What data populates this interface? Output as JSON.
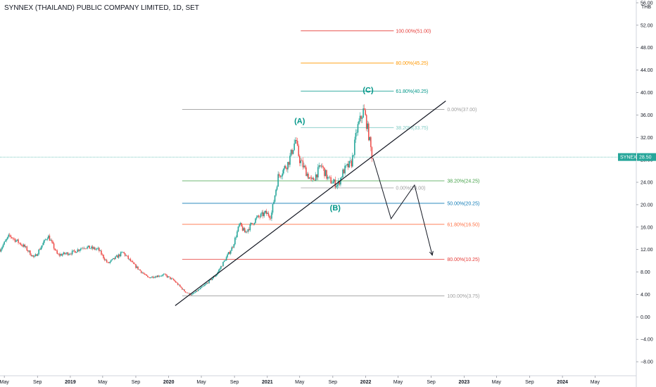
{
  "title": "SYNNEX (THAILAND) PUBLIC COMPANY LIMITED, 1D, SET",
  "currency": "THB",
  "ticker_badge": {
    "symbol": "SYNEX",
    "price": "28.50",
    "color": "#26a69a"
  },
  "colors": {
    "up": "#26a69a",
    "down": "#ef5350"
  },
  "chart_data": {
    "type": "candlestick",
    "y_axis": {
      "ylim": [
        -10.5,
        56.5
      ],
      "ticks": [
        56,
        52,
        48,
        44,
        40,
        36,
        32,
        28,
        24,
        20,
        16,
        12,
        8,
        4,
        0,
        -4,
        -8
      ],
      "labels": [
        "56.00",
        "52.00",
        "48.00",
        "44.00",
        "40.00",
        "36.00",
        "32.00",
        "28.00",
        "24.00",
        "20.00",
        "16.00",
        "12.00",
        "8.00",
        "4.00",
        "0.00",
        "−4.00",
        "−8.00"
      ]
    },
    "x_axis": {
      "xlim": [
        "2018-04-15",
        "2024-10-01"
      ],
      "ticks": [
        {
          "date": "2018-05-01",
          "label": "May"
        },
        {
          "date": "2018-09-01",
          "label": "Sep"
        },
        {
          "date": "2019-01-01",
          "label": "2019"
        },
        {
          "date": "2019-05-01",
          "label": "May"
        },
        {
          "date": "2019-09-01",
          "label": "Sep"
        },
        {
          "date": "2020-01-01",
          "label": "2020"
        },
        {
          "date": "2020-05-01",
          "label": "May"
        },
        {
          "date": "2020-09-01",
          "label": "Sep"
        },
        {
          "date": "2021-01-01",
          "label": "2021"
        },
        {
          "date": "2021-05-01",
          "label": "May"
        },
        {
          "date": "2021-09-01",
          "label": "Sep"
        },
        {
          "date": "2022-01-01",
          "label": "2022"
        },
        {
          "date": "2022-05-01",
          "label": "May"
        },
        {
          "date": "2022-09-01",
          "label": "Sep"
        },
        {
          "date": "2023-01-01",
          "label": "2023"
        },
        {
          "date": "2023-05-01",
          "label": "May"
        },
        {
          "date": "2023-09-01",
          "label": "Sep"
        },
        {
          "date": "2024-01-01",
          "label": "2024"
        },
        {
          "date": "2024-05-01",
          "label": "May"
        }
      ]
    },
    "price_anchors": [
      [
        "2018-04-15",
        12.0
      ],
      [
        "2018-05-20",
        14.5
      ],
      [
        "2018-07-15",
        12.5
      ],
      [
        "2018-08-20",
        10.5
      ],
      [
        "2018-10-10",
        14.5
      ],
      [
        "2018-11-15",
        11.0
      ],
      [
        "2019-01-10",
        11.5
      ],
      [
        "2019-02-20",
        12.5
      ],
      [
        "2019-04-15",
        12.0
      ],
      [
        "2019-05-20",
        9.5
      ],
      [
        "2019-07-15",
        11.5
      ],
      [
        "2019-08-20",
        9.5
      ],
      [
        "2019-10-15",
        7.0
      ],
      [
        "2019-12-15",
        7.5
      ],
      [
        "2020-01-20",
        6.5
      ],
      [
        "2020-03-01",
        4.5
      ],
      [
        "2020-03-25",
        3.9
      ],
      [
        "2020-05-10",
        5.5
      ],
      [
        "2020-06-25",
        7.5
      ],
      [
        "2020-08-01",
        10.5
      ],
      [
        "2020-08-25",
        12.5
      ],
      [
        "2020-09-20",
        16.5
      ],
      [
        "2020-10-10",
        15.0
      ],
      [
        "2020-11-20",
        17.5
      ],
      [
        "2020-12-25",
        18.5
      ],
      [
        "2021-01-15",
        18.0
      ],
      [
        "2021-02-10",
        25.0
      ],
      [
        "2021-03-20",
        27.5
      ],
      [
        "2021-04-15",
        31.5
      ],
      [
        "2021-05-01",
        28.0
      ],
      [
        "2021-06-15",
        24.0
      ],
      [
        "2021-07-20",
        27.0
      ],
      [
        "2021-08-15",
        24.5
      ],
      [
        "2021-09-20",
        23.5
      ],
      [
        "2021-10-10",
        26.0
      ],
      [
        "2021-11-10",
        27.5
      ],
      [
        "2021-11-30",
        33.5
      ],
      [
        "2021-12-25",
        37.0
      ],
      [
        "2022-01-10",
        33.0
      ],
      [
        "2022-01-25",
        28.5
      ]
    ],
    "fib_left": [
      {
        "label": "38.20%(24.25)",
        "value": 24.25,
        "color": "#43a047"
      },
      {
        "label": "50.00%(20.25)",
        "value": 20.25,
        "color": "#0d79b5"
      },
      {
        "label": "61.80%(16.50)",
        "value": 16.5,
        "color": "#ff7043"
      },
      {
        "label": "80.00%(10.25)",
        "value": 10.25,
        "color": "#e53935"
      },
      {
        "label": "100.00%(3.75)",
        "value": 3.75,
        "color": "#9e9e9e"
      }
    ],
    "fib_top": [
      {
        "label": "0.00%(37.00)",
        "value": 37.0,
        "color": "#9e9e9e"
      }
    ],
    "fib_ext": [
      {
        "label": "100.00%(51.00)",
        "value": 51.0,
        "color": "#e53935"
      },
      {
        "label": "80.00%(45.25)",
        "value": 45.25,
        "color": "#ff9800"
      },
      {
        "label": "61.80%(40.25)",
        "value": 40.25,
        "color": "#009688"
      },
      {
        "label": "38.20%(33.75)",
        "value": 33.75,
        "color": "#80cbc4"
      },
      {
        "label": "0.00%(23.00)",
        "value": 23.0,
        "color": "#9e9e9e"
      }
    ],
    "wave_labels": [
      {
        "text": "(A)",
        "date": "2021-05-01",
        "value": 34.5,
        "color": "#009688"
      },
      {
        "text": "(B)",
        "date": "2021-09-10",
        "value": 19.0,
        "color": "#009688"
      },
      {
        "text": "(C)",
        "date": "2022-01-10",
        "value": 40.0,
        "color": "#009688"
      }
    ],
    "trendline": {
      "from": [
        "2020-01-25",
        2.0
      ],
      "to": [
        "2022-10-25",
        38.5
      ]
    },
    "projection": [
      [
        "2022-01-28",
        28.3
      ],
      [
        "2022-04-05",
        17.5
      ],
      [
        "2022-07-01",
        23.5
      ],
      [
        "2022-09-05",
        11.0
      ]
    ]
  }
}
